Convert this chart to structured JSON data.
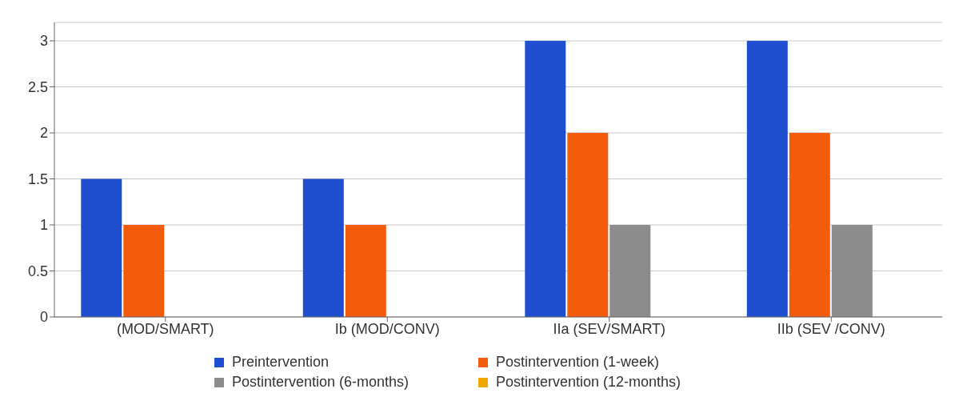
{
  "chart_data": {
    "type": "bar",
    "categories": [
      "(MOD/SMART)",
      "Ib (MOD/CONV)",
      "IIa (SEV/SMART)",
      "IIb (SEV /CONV)"
    ],
    "series": [
      {
        "name": "Preintervention",
        "color": "#1f4fd0",
        "values": [
          1.5,
          1.5,
          3,
          3
        ]
      },
      {
        "name": "Postintervention (1-week)",
        "color": "#f25c0c",
        "values": [
          1,
          1,
          2,
          2
        ]
      },
      {
        "name": "Postintervention (6-months)",
        "color": "#8c8c8c",
        "values": [
          0,
          0,
          1,
          1
        ]
      },
      {
        "name": "Postintervention (12-months)",
        "color": "#f0a800",
        "values": [
          0,
          0,
          0,
          0
        ]
      }
    ],
    "ylim": [
      0,
      3.2
    ],
    "yticks": [
      0,
      0.5,
      1,
      1.5,
      2,
      2.5,
      3
    ],
    "grid": "y",
    "legend": "bottom"
  }
}
